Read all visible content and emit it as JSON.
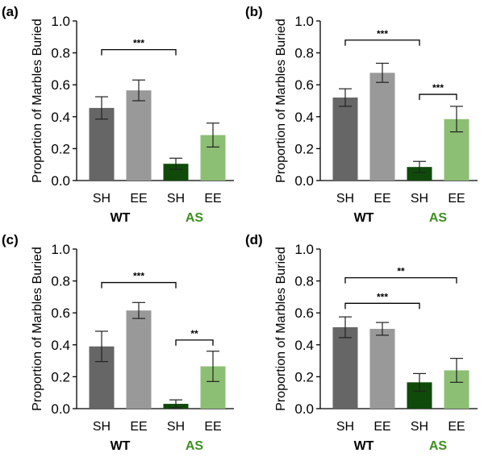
{
  "chart_data": [
    {
      "type": "bar",
      "panel_label": "(a)",
      "ylabel": "Proportion of Marbles Buried",
      "ylim": [
        0,
        1.0
      ],
      "yticks": [
        "0.0",
        "0.2",
        "0.4",
        "0.6",
        "0.8",
        "1.0"
      ],
      "categories": [
        "SH",
        "EE",
        "SH",
        "EE"
      ],
      "groups": [
        {
          "name": "WT",
          "color": "#000000"
        },
        {
          "name": "AS",
          "color": "#3d8f1e"
        }
      ],
      "values": [
        0.455,
        0.565,
        0.105,
        0.285
      ],
      "errors": [
        0.07,
        0.065,
        0.035,
        0.075
      ],
      "bar_colors": [
        "#666666",
        "#999999",
        "#0f4a0a",
        "#8cbf73"
      ],
      "significance": [
        {
          "from": 0,
          "to": 2,
          "label": "***",
          "level": 0.82
        }
      ]
    },
    {
      "type": "bar",
      "panel_label": "(b)",
      "ylabel": "Proportion of Marbles Buried",
      "ylim": [
        0,
        1.0
      ],
      "yticks": [
        "0.0",
        "0.2",
        "0.4",
        "0.6",
        "0.8",
        "1.0"
      ],
      "categories": [
        "SH",
        "EE",
        "SH",
        "EE"
      ],
      "groups": [
        {
          "name": "WT",
          "color": "#000000"
        },
        {
          "name": "AS",
          "color": "#3d8f1e"
        }
      ],
      "values": [
        0.52,
        0.675,
        0.085,
        0.385
      ],
      "errors": [
        0.055,
        0.06,
        0.035,
        0.08
      ],
      "bar_colors": [
        "#666666",
        "#999999",
        "#0f4a0a",
        "#8cbf73"
      ],
      "significance": [
        {
          "from": 0,
          "to": 2,
          "label": "***",
          "level": 0.88
        },
        {
          "from": 2,
          "to": 3,
          "label": "***",
          "level": 0.54
        }
      ]
    },
    {
      "type": "bar",
      "panel_label": "(c)",
      "ylabel": "Proportion of Marbles Buried",
      "ylim": [
        0,
        1.0
      ],
      "yticks": [
        "0.0",
        "0.2",
        "0.4",
        "0.6",
        "0.8",
        "1.0"
      ],
      "categories": [
        "SH",
        "EE",
        "SH",
        "EE"
      ],
      "groups": [
        {
          "name": "WT",
          "color": "#000000"
        },
        {
          "name": "AS",
          "color": "#3d8f1e"
        }
      ],
      "values": [
        0.39,
        0.615,
        0.03,
        0.265
      ],
      "errors": [
        0.095,
        0.05,
        0.025,
        0.095
      ],
      "bar_colors": [
        "#666666",
        "#999999",
        "#0f4a0a",
        "#8cbf73"
      ],
      "significance": [
        {
          "from": 0,
          "to": 2,
          "label": "***",
          "level": 0.79
        },
        {
          "from": 2,
          "to": 3,
          "label": "**",
          "level": 0.43
        }
      ]
    },
    {
      "type": "bar",
      "panel_label": "(d)",
      "ylabel": "Proportion of Marbles Buried",
      "ylim": [
        0,
        1.0
      ],
      "yticks": [
        "0.0",
        "0.2",
        "0.4",
        "0.6",
        "0.8",
        "1.0"
      ],
      "categories": [
        "SH",
        "EE",
        "SH",
        "EE"
      ],
      "groups": [
        {
          "name": "WT",
          "color": "#000000"
        },
        {
          "name": "AS",
          "color": "#3d8f1e"
        }
      ],
      "values": [
        0.51,
        0.5,
        0.165,
        0.24
      ],
      "errors": [
        0.065,
        0.04,
        0.055,
        0.075
      ],
      "bar_colors": [
        "#666666",
        "#999999",
        "#0f4a0a",
        "#8cbf73"
      ],
      "significance": [
        {
          "from": 0,
          "to": 3,
          "label": "**",
          "level": 0.82
        },
        {
          "from": 0,
          "to": 2,
          "label": "***",
          "level": 0.66
        }
      ]
    }
  ]
}
